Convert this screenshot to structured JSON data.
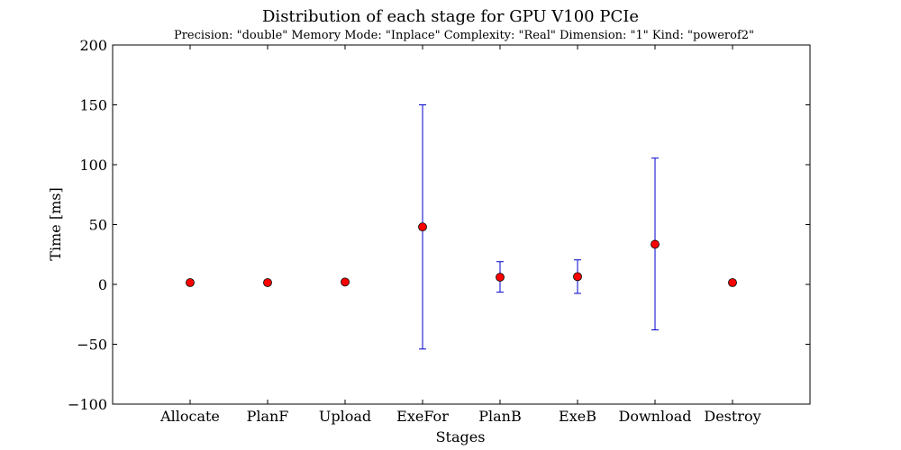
{
  "chart_data": {
    "type": "scatter",
    "title": "Distribution of each stage for GPU V100 PCIe",
    "subtitle": "Precision: \"double\" Memory Mode: \"Inplace\" Complexity: \"Real\" Dimension: \"1\" Kind: \"powerof2\"",
    "xlabel": "Stages",
    "ylabel": "Time [ms]",
    "ylim": [
      -100,
      200
    ],
    "yticks": [
      -100,
      -50,
      0,
      50,
      100,
      150,
      200
    ],
    "ytick_labels": [
      "−100",
      "−50",
      "0",
      "50",
      "100",
      "150",
      "200"
    ],
    "categories": [
      "Allocate",
      "PlanF",
      "Upload",
      "ExeFor",
      "PlanB",
      "ExeB",
      "Download",
      "Destroy"
    ],
    "series": [
      {
        "values": [
          1.5,
          1.5,
          2.0,
          48.0,
          6.0,
          6.5,
          33.5,
          1.5
        ],
        "error_low": [
          1.5,
          1.5,
          2.0,
          -54.0,
          -6.5,
          -7.5,
          -38.0,
          1.5
        ],
        "error_high": [
          1.5,
          1.5,
          2.0,
          150.0,
          19.0,
          20.5,
          105.5,
          1.5
        ]
      }
    ],
    "grid": false,
    "colors": {
      "marker": "#ff0000",
      "marker_edge": "#000000",
      "errorbar": "#0000cc",
      "axes": "#000000"
    }
  }
}
